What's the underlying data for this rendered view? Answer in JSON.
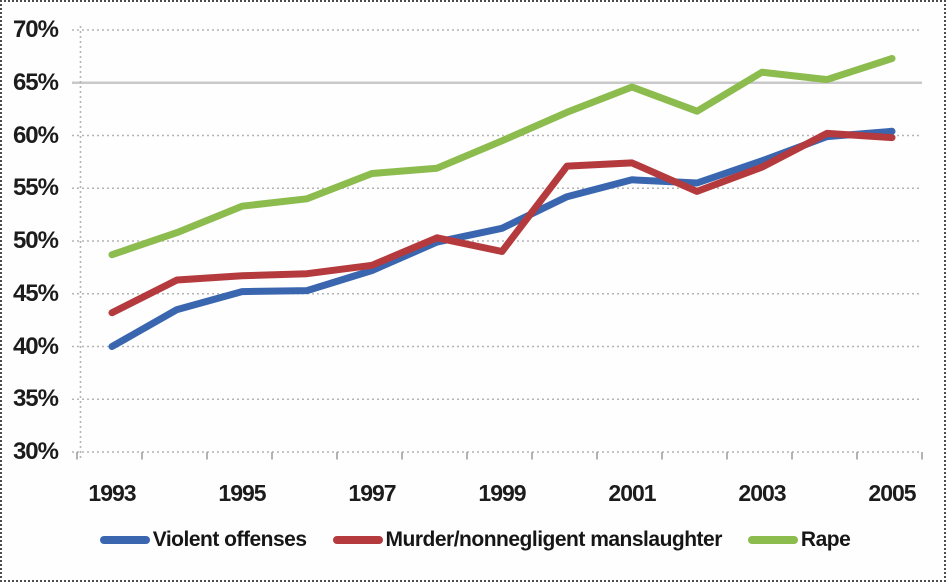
{
  "chart_data": {
    "type": "line",
    "title": "",
    "xlabel": "",
    "ylabel": "",
    "x": [
      1993,
      1994,
      1995,
      1996,
      1997,
      1998,
      1999,
      2000,
      2001,
      2002,
      2003,
      2004,
      2005
    ],
    "x_tick_values": [
      1993,
      1995,
      1997,
      1999,
      2001,
      2003,
      2005
    ],
    "x_tick_labels": [
      "1993",
      "1995",
      "1997",
      "1999",
      "2001",
      "2003",
      "2005"
    ],
    "ylim": [
      30,
      70
    ],
    "ytick_step": 5,
    "y_tick_values": [
      30,
      35,
      40,
      45,
      50,
      55,
      60,
      65,
      70
    ],
    "y_tick_labels": [
      "30%",
      "35%",
      "40%",
      "45%",
      "50%",
      "55%",
      "60%",
      "65%",
      "70%"
    ],
    "grid": true,
    "legend_position": "bottom",
    "series": [
      {
        "name": "Violent offenses",
        "color": "#3a66b0",
        "values": [
          40.0,
          43.5,
          45.2,
          45.3,
          47.2,
          49.9,
          51.2,
          54.2,
          55.8,
          55.5,
          57.6,
          59.9,
          60.4
        ]
      },
      {
        "name": "Murder/nonnegligent manslaughter",
        "color": "#b53a3d",
        "values": [
          43.2,
          46.3,
          46.7,
          46.9,
          47.7,
          50.3,
          49.0,
          57.1,
          57.4,
          54.7,
          57.0,
          60.2,
          59.8
        ]
      },
      {
        "name": "Rape",
        "color": "#8cbb4e",
        "values": [
          48.7,
          50.8,
          53.3,
          54.0,
          56.4,
          56.9,
          59.5,
          62.2,
          64.6,
          62.3,
          66.0,
          65.3,
          67.3
        ]
      }
    ],
    "colors": {
      "grid": "#b4b4b4",
      "grid_solid": "#c9c9c9",
      "axis": "#9a9a9a",
      "text": "#1c1c1c",
      "background": "#fdfefd",
      "border": "#4d4d4d"
    }
  }
}
